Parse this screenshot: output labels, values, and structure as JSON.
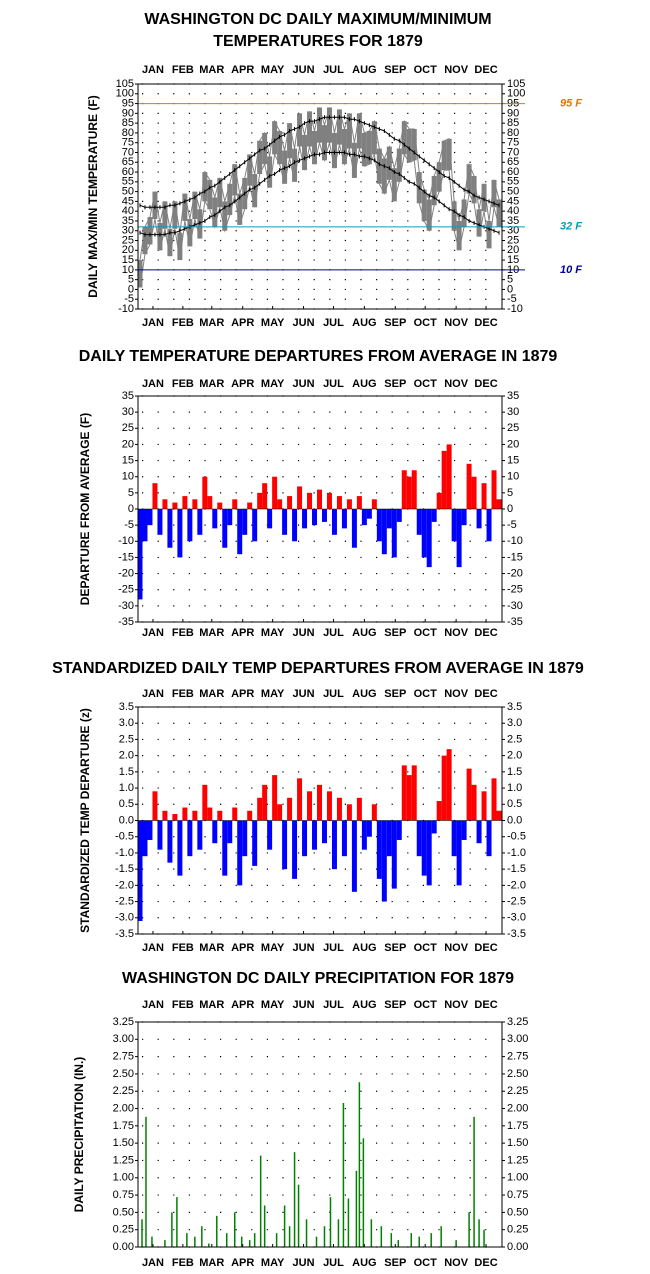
{
  "chart_data": [
    {
      "type": "range",
      "title": [
        "WASHINGTON DC DAILY MAXIMUM/MINIMUM",
        "TEMPERATURES FOR 1879"
      ],
      "y_label": "DAILY MAX/MIN TEMPERATURE (F)",
      "x": [
        3,
        8,
        13,
        18,
        23,
        28,
        33,
        38,
        43,
        48,
        53,
        58,
        63,
        68,
        73,
        78,
        83,
        88,
        93,
        98,
        103,
        108,
        113,
        118,
        123,
        128,
        133,
        138,
        143,
        148,
        153,
        158,
        163,
        168,
        173,
        178,
        183,
        188,
        193,
        198,
        203,
        208,
        213,
        218,
        223,
        228,
        233,
        238,
        243,
        248,
        253,
        258,
        263,
        268,
        273,
        278,
        283,
        288,
        293,
        298,
        303,
        308,
        313,
        318,
        323,
        328,
        333,
        338,
        343,
        348,
        353,
        358,
        363
      ],
      "high": [
        15,
        32,
        37,
        50,
        34,
        45,
        31,
        45,
        29,
        49,
        36,
        50,
        41,
        60,
        56,
        47,
        57,
        45,
        54,
        64,
        49,
        57,
        69,
        59,
        76,
        80,
        68,
        86,
        81,
        71,
        85,
        72,
        90,
        79,
        91,
        81,
        93,
        84,
        93,
        80,
        92,
        82,
        90,
        75,
        90,
        80,
        81,
        86,
        72,
        67,
        73,
        62,
        72,
        86,
        82,
        82,
        60,
        51,
        46,
        58,
        65,
        76,
        77,
        45,
        35,
        46,
        64,
        58,
        41,
        54,
        35,
        56,
        46
      ],
      "low": [
        1,
        18,
        23,
        36,
        20,
        31,
        17,
        31,
        15,
        35,
        22,
        36,
        26,
        45,
        41,
        32,
        42,
        30,
        38,
        48,
        33,
        41,
        53,
        42,
        59,
        64,
        52,
        69,
        64,
        54,
        67,
        55,
        73,
        61,
        73,
        64,
        75,
        66,
        75,
        62,
        74,
        64,
        72,
        57,
        72,
        63,
        64,
        69,
        54,
        49,
        56,
        45,
        55,
        69,
        65,
        66,
        44,
        35,
        30,
        43,
        50,
        61,
        61,
        30,
        20,
        32,
        49,
        44,
        27,
        40,
        21,
        42,
        32
      ],
      "range_color": "#808080",
      "normal_high": [
        43,
        42,
        42,
        42,
        42,
        42,
        43,
        43,
        44,
        45,
        46,
        47,
        49,
        50,
        52,
        53,
        55,
        57,
        59,
        61,
        63,
        65,
        67,
        69,
        71,
        72,
        74,
        76,
        78,
        79,
        81,
        82,
        83,
        85,
        86,
        86,
        87,
        88,
        88,
        88,
        88,
        88,
        87,
        87,
        86,
        85,
        84,
        83,
        82,
        81,
        79,
        77,
        76,
        74,
        72,
        70,
        68,
        66,
        64,
        62,
        60,
        58,
        57,
        55,
        53,
        51,
        50,
        48,
        47,
        46,
        45,
        44,
        43
      ],
      "normal_low": [
        29,
        28,
        28,
        28,
        28,
        28,
        29,
        29,
        30,
        31,
        32,
        33,
        34,
        35,
        37,
        38,
        40,
        42,
        43,
        45,
        47,
        49,
        51,
        52,
        54,
        56,
        58,
        59,
        61,
        62,
        63,
        65,
        66,
        67,
        68,
        69,
        69,
        70,
        70,
        70,
        70,
        70,
        69,
        69,
        68,
        68,
        67,
        66,
        64,
        63,
        62,
        60,
        59,
        57,
        55,
        54,
        52,
        50,
        48,
        47,
        45,
        43,
        41,
        40,
        38,
        37,
        35,
        34,
        33,
        32,
        31,
        30,
        29
      ],
      "normal_color": "#000000",
      "reference_lines": [
        {
          "value": 95,
          "label": "95 F",
          "color": "#e07800"
        },
        {
          "value": 32,
          "label": "32 F",
          "color": "#00a0b8"
        },
        {
          "value": 10,
          "label": "10 F",
          "color": "#0000a0"
        }
      ],
      "xlim": [
        1,
        366
      ],
      "xticks": [
        {
          "value": 16,
          "label": "JAN"
        },
        {
          "value": 46,
          "label": "FEB"
        },
        {
          "value": 75,
          "label": "MAR"
        },
        {
          "value": 106,
          "label": "APR"
        },
        {
          "value": 136,
          "label": "MAY"
        },
        {
          "value": 167,
          "label": "JUN"
        },
        {
          "value": 197,
          "label": "JUL"
        },
        {
          "value": 228,
          "label": "AUG"
        },
        {
          "value": 259,
          "label": "SEP"
        },
        {
          "value": 289,
          "label": "OCT"
        },
        {
          "value": 320,
          "label": "NOV"
        },
        {
          "value": 350,
          "label": "DEC"
        }
      ],
      "ylim": [
        -10,
        105
      ],
      "yticks": [
        -10,
        -5,
        0,
        5,
        10,
        15,
        20,
        25,
        30,
        35,
        40,
        45,
        50,
        55,
        60,
        65,
        70,
        75,
        80,
        85,
        90,
        95,
        100,
        105
      ],
      "grid": true
    },
    {
      "type": "diverging-bar",
      "title": "DAILY TEMPERATURE DEPARTURES FROM AVERAGE IN 1879",
      "y_label": "DEPARTURE FROM AVERAGE (F)",
      "x": [
        3,
        8,
        13,
        18,
        23,
        28,
        33,
        38,
        43,
        48,
        53,
        58,
        63,
        68,
        73,
        78,
        83,
        88,
        93,
        98,
        103,
        108,
        113,
        118,
        123,
        128,
        133,
        138,
        143,
        148,
        153,
        158,
        163,
        168,
        173,
        178,
        183,
        188,
        193,
        198,
        203,
        208,
        213,
        218,
        223,
        228,
        233,
        238,
        243,
        248,
        253,
        258,
        263,
        268,
        273,
        278,
        283,
        288,
        293,
        298,
        303,
        308,
        313,
        318,
        323,
        328,
        333,
        338,
        343,
        348,
        353,
        358,
        363
      ],
      "values": [
        -28,
        -10,
        -5,
        8,
        -8,
        3,
        -12,
        2,
        -15,
        4,
        -10,
        3,
        -8,
        10,
        4,
        -6,
        2,
        -12,
        -5,
        3,
        -14,
        -8,
        2,
        -10,
        5,
        8,
        -6,
        10,
        3,
        -8,
        4,
        -10,
        7,
        -6,
        5,
        -5,
        6,
        -4,
        5,
        -8,
        4,
        -6,
        3,
        -12,
        4,
        -5,
        -3,
        3,
        -10,
        -14,
        -6,
        -15,
        -4,
        12,
        10,
        12,
        -8,
        -15,
        -18,
        -4,
        5,
        18,
        20,
        -10,
        -18,
        -5,
        14,
        10,
        -6,
        8,
        -10,
        12,
        3
      ],
      "positive_color": "#ff0000",
      "negative_color": "#0000ff",
      "xlim": [
        1,
        366
      ],
      "xticks": [
        {
          "value": 16,
          "label": "JAN"
        },
        {
          "value": 46,
          "label": "FEB"
        },
        {
          "value": 75,
          "label": "MAR"
        },
        {
          "value": 106,
          "label": "APR"
        },
        {
          "value": 136,
          "label": "MAY"
        },
        {
          "value": 167,
          "label": "JUN"
        },
        {
          "value": 197,
          "label": "JUL"
        },
        {
          "value": 228,
          "label": "AUG"
        },
        {
          "value": 259,
          "label": "SEP"
        },
        {
          "value": 289,
          "label": "OCT"
        },
        {
          "value": 320,
          "label": "NOV"
        },
        {
          "value": 350,
          "label": "DEC"
        }
      ],
      "ylim": [
        -35,
        35
      ],
      "yticks": [
        -35,
        -30,
        -25,
        -20,
        -15,
        -10,
        -5,
        0,
        5,
        10,
        15,
        20,
        25,
        30,
        35
      ],
      "grid": true
    },
    {
      "type": "diverging-bar",
      "title": "STANDARDIZED DAILY TEMP DEPARTURES FROM AVERAGE IN 1879",
      "y_label": "STANDARDIZED TEMP DEPARTURE (z)",
      "x": [
        3,
        8,
        13,
        18,
        23,
        28,
        33,
        38,
        43,
        48,
        53,
        58,
        63,
        68,
        73,
        78,
        83,
        88,
        93,
        98,
        103,
        108,
        113,
        118,
        123,
        128,
        133,
        138,
        143,
        148,
        153,
        158,
        163,
        168,
        173,
        178,
        183,
        188,
        193,
        198,
        203,
        208,
        213,
        218,
        223,
        228,
        233,
        238,
        243,
        248,
        253,
        258,
        263,
        268,
        273,
        278,
        283,
        288,
        293,
        298,
        303,
        308,
        313,
        318,
        323,
        328,
        333,
        338,
        343,
        348,
        353,
        358,
        363
      ],
      "values": [
        -3.1,
        -1.1,
        -0.6,
        0.9,
        -0.9,
        0.3,
        -1.3,
        0.2,
        -1.7,
        0.4,
        -1.1,
        0.3,
        -0.9,
        1.1,
        0.4,
        -0.7,
        0.3,
        -1.7,
        -0.7,
        0.4,
        -2.0,
        -1.1,
        0.3,
        -1.4,
        0.7,
        1.1,
        -0.9,
        1.4,
        0.5,
        -1.5,
        0.7,
        -1.8,
        1.3,
        -1.1,
        0.9,
        -0.9,
        1.1,
        -0.7,
        0.9,
        -1.5,
        0.7,
        -1.1,
        0.5,
        -2.2,
        0.7,
        -0.9,
        -0.5,
        0.5,
        -1.8,
        -2.5,
        -1.1,
        -2.1,
        -0.6,
        1.7,
        1.4,
        1.7,
        -1.1,
        -1.7,
        -2.0,
        -0.4,
        0.6,
        2.0,
        2.2,
        -1.1,
        -2.0,
        -0.6,
        1.6,
        1.1,
        -0.7,
        0.9,
        -1.1,
        1.3,
        0.3
      ],
      "positive_color": "#ff0000",
      "negative_color": "#0000ff",
      "xlim": [
        1,
        366
      ],
      "xticks": [
        {
          "value": 16,
          "label": "JAN"
        },
        {
          "value": 46,
          "label": "FEB"
        },
        {
          "value": 75,
          "label": "MAR"
        },
        {
          "value": 106,
          "label": "APR"
        },
        {
          "value": 136,
          "label": "MAY"
        },
        {
          "value": 167,
          "label": "JUN"
        },
        {
          "value": 197,
          "label": "JUL"
        },
        {
          "value": 228,
          "label": "AUG"
        },
        {
          "value": 259,
          "label": "SEP"
        },
        {
          "value": 289,
          "label": "OCT"
        },
        {
          "value": 320,
          "label": "NOV"
        },
        {
          "value": 350,
          "label": "DEC"
        }
      ],
      "ylim": [
        -3.5,
        3.5
      ],
      "yticks": [
        -3.5,
        {
          "value": -3,
          "label": "-3.0"
        },
        -2.5,
        {
          "value": -2,
          "label": "-2.0"
        },
        -1.5,
        {
          "value": -1,
          "label": "-1.0"
        },
        -0.5,
        {
          "value": 0,
          "label": "0.0"
        },
        0.5,
        {
          "value": 1,
          "label": "1.0"
        },
        1.5,
        {
          "value": 2,
          "label": "2.0"
        },
        2.5,
        {
          "value": 3,
          "label": "3.0"
        },
        3.5
      ],
      "grid": true
    },
    {
      "type": "bar",
      "title": "WASHINGTON DC DAILY PRECIPITATION FOR 1879",
      "y_label": "DAILY PRECIPITATION (IN.)",
      "x": [
        5,
        9,
        15,
        28,
        35,
        40,
        50,
        58,
        65,
        72,
        80,
        90,
        98,
        105,
        113,
        118,
        124,
        128,
        140,
        148,
        153,
        158,
        162,
        170,
        180,
        188,
        194,
        202,
        207,
        212,
        220,
        223,
        227,
        235,
        245,
        255,
        262,
        275,
        283,
        295,
        305,
        320,
        333,
        338,
        343,
        348
      ],
      "values": [
        0.4,
        1.88,
        0.15,
        0.1,
        0.5,
        0.72,
        0.2,
        0.15,
        0.3,
        0.05,
        0.45,
        0.2,
        0.5,
        0.15,
        0.1,
        0.2,
        1.32,
        0.6,
        0.2,
        0.6,
        0.3,
        1.37,
        0.9,
        0.4,
        0.15,
        0.3,
        0.72,
        0.4,
        2.08,
        0.7,
        1.1,
        2.38,
        1.57,
        0.4,
        0.3,
        0.2,
        0.1,
        0.2,
        0.15,
        0.2,
        0.3,
        0.1,
        0.5,
        1.88,
        0.4,
        0.25
      ],
      "color": "#008000",
      "xlim": [
        1,
        366
      ],
      "xticks": [
        {
          "value": 16,
          "label": "JAN"
        },
        {
          "value": 46,
          "label": "FEB"
        },
        {
          "value": 75,
          "label": "MAR"
        },
        {
          "value": 106,
          "label": "APR"
        },
        {
          "value": 136,
          "label": "MAY"
        },
        {
          "value": 167,
          "label": "JUN"
        },
        {
          "value": 197,
          "label": "JUL"
        },
        {
          "value": 228,
          "label": "AUG"
        },
        {
          "value": 259,
          "label": "SEP"
        },
        {
          "value": 289,
          "label": "OCT"
        },
        {
          "value": 320,
          "label": "NOV"
        },
        {
          "value": 350,
          "label": "DEC"
        }
      ],
      "ylim": [
        0,
        3.25
      ],
      "yticks": [
        {
          "value": 0,
          "label": "0.00"
        },
        {
          "value": 0.25,
          "label": "0.25"
        },
        {
          "value": 0.5,
          "label": "0.50"
        },
        {
          "value": 0.75,
          "label": "0.75"
        },
        {
          "value": 1,
          "label": "1.00"
        },
        {
          "value": 1.25,
          "label": "1.25"
        },
        {
          "value": 1.5,
          "label": "1.50"
        },
        {
          "value": 1.75,
          "label": "1.75"
        },
        {
          "value": 2,
          "label": "2.00"
        },
        {
          "value": 2.25,
          "label": "2.25"
        },
        {
          "value": 2.5,
          "label": "2.50"
        },
        {
          "value": 2.75,
          "label": "2.75"
        },
        {
          "value": 3,
          "label": "3.00"
        },
        {
          "value": 3.25,
          "label": "3.25"
        }
      ],
      "grid": true
    }
  ]
}
